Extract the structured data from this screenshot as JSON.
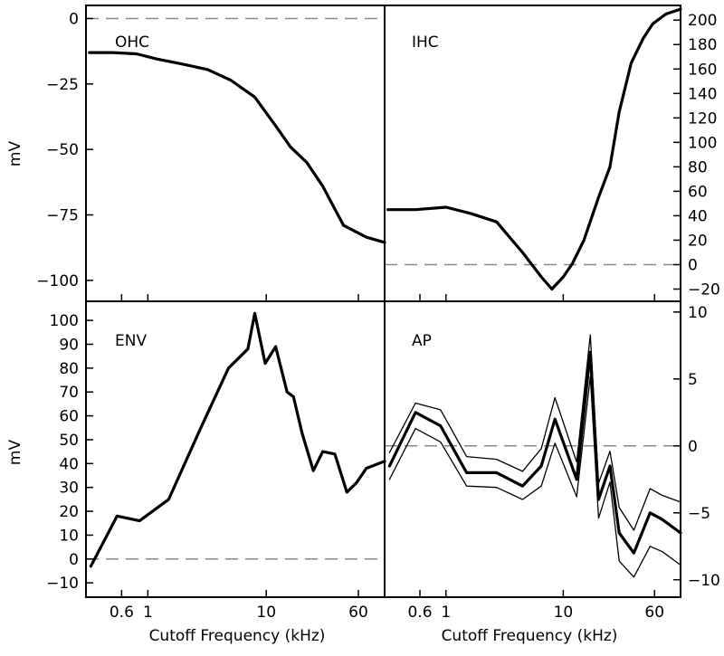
{
  "figure": {
    "x_axis_title": "Cutoff Frequency (kHz)",
    "y_axis_title": "mV",
    "x_ticks": [
      0.6,
      1,
      10,
      60
    ],
    "x_tick_labels": [
      "0.6",
      "1",
      "10",
      "60"
    ],
    "xlim": [
      0.3,
      100
    ],
    "x_scale": "log",
    "line_color": "#000000",
    "zero_line_color": "#888888"
  },
  "chart_data": [
    {
      "type": "line",
      "panel": "top-left",
      "label": "OHC",
      "x_scale": "log",
      "xlim": [
        0.3,
        100
      ],
      "ylim": [
        -108,
        5
      ],
      "y_axis_side": "left",
      "yticks": [
        0,
        -25,
        -50,
        -75,
        -100
      ],
      "ytick_labels": [
        "0",
        "−25",
        "−50",
        "−75",
        "−100"
      ],
      "zero_line": true,
      "series": [
        {
          "style": "thick",
          "x": [
            0.32,
            0.5,
            0.8,
            1.2,
            2,
            3.2,
            5,
            8,
            12,
            16,
            22,
            30,
            45,
            70,
            100
          ],
          "values": [
            -13,
            -13,
            -13.5,
            -15.5,
            -17.5,
            -19.5,
            -23.5,
            -30,
            -41,
            -49,
            -55,
            -64,
            -79,
            -83.5,
            -85.5
          ]
        }
      ]
    },
    {
      "type": "line",
      "panel": "top-right",
      "label": "IHC",
      "x_scale": "log",
      "xlim": [
        0.3,
        100
      ],
      "ylim": [
        -30,
        212
      ],
      "y_axis_side": "right",
      "yticks": [
        200,
        180,
        160,
        140,
        120,
        100,
        80,
        60,
        40,
        20,
        0,
        -20
      ],
      "ytick_labels": [
        "200",
        "180",
        "160",
        "140",
        "120",
        "100",
        "80",
        "60",
        "40",
        "20",
        "0",
        "−20"
      ],
      "zero_line": true,
      "series": [
        {
          "style": "thick",
          "x": [
            0.32,
            0.55,
            1,
            1.6,
            2.7,
            4.5,
            6.5,
            8,
            10,
            12,
            15,
            20,
            25,
            30,
            38,
            48,
            58,
            75,
            100
          ],
          "values": [
            45,
            45,
            47,
            42,
            35,
            10,
            -10,
            -20,
            -10,
            1,
            20,
            55,
            80,
            125,
            165,
            185,
            197,
            205,
            209
          ]
        }
      ]
    },
    {
      "type": "line",
      "panel": "bottom-left",
      "label": "ENV",
      "x_scale": "log",
      "xlim": [
        0.3,
        100
      ],
      "ylim": [
        -16,
        108
      ],
      "y_axis_side": "left",
      "yticks": [
        100,
        90,
        80,
        70,
        60,
        50,
        40,
        30,
        20,
        10,
        0,
        -10
      ],
      "ytick_labels": [
        "100",
        "90",
        "80",
        "70",
        "60",
        "50",
        "40",
        "30",
        "20",
        "10",
        "0",
        "−10"
      ],
      "zero_line": true,
      "series": [
        {
          "style": "thick",
          "x": [
            0.33,
            0.55,
            0.85,
            1.5,
            2.8,
            4.8,
            7,
            8,
            9.8,
            12,
            15,
            17,
            20,
            25,
            30,
            38,
            48,
            58,
            70,
            100
          ],
          "values": [
            -3,
            18,
            16,
            25,
            55,
            80,
            88,
            103,
            82,
            89,
            70,
            68,
            53,
            37,
            45,
            44,
            28,
            32,
            38,
            41
          ]
        }
      ]
    },
    {
      "type": "line",
      "panel": "bottom-right",
      "label": "AP",
      "x_scale": "log",
      "xlim": [
        0.3,
        100
      ],
      "ylim": [
        -11.3,
        10.8
      ],
      "y_axis_side": "right",
      "yticks": [
        10,
        5,
        0,
        -5,
        -10
      ],
      "ytick_labels": [
        "10",
        "5",
        "0",
        "−5",
        "−10"
      ],
      "zero_line": true,
      "series": [
        {
          "style": "thick",
          "x": [
            0.33,
            0.55,
            0.9,
            1.5,
            2.7,
            4.5,
            6.5,
            8.5,
            13,
            17,
            20,
            25,
            30,
            40,
            55,
            70,
            100
          ],
          "values": [
            -1.5,
            2.5,
            1.5,
            -2.0,
            -2.0,
            -3.0,
            -1.5,
            2.0,
            -2.5,
            7.0,
            -4.0,
            -1.5,
            -6.5,
            -8.0,
            -5.0,
            -5.5,
            -6.5
          ]
        },
        {
          "style": "thin",
          "x": [
            0.33,
            0.55,
            0.9,
            1.5,
            2.7,
            4.5,
            6.5,
            8.5,
            13,
            17,
            20,
            25,
            30,
            40,
            55,
            70,
            100
          ],
          "values": [
            -0.5,
            3.2,
            2.7,
            -0.8,
            -1.0,
            -1.9,
            -0.2,
            3.6,
            -1.2,
            8.3,
            -2.8,
            -0.4,
            -4.6,
            -6.3,
            -3.2,
            -3.7,
            -4.2
          ]
        },
        {
          "style": "thin",
          "x": [
            0.33,
            0.55,
            0.9,
            1.5,
            2.7,
            4.5,
            6.5,
            8.5,
            13,
            17,
            20,
            25,
            30,
            40,
            55,
            70,
            100
          ],
          "values": [
            -2.5,
            1.3,
            0.3,
            -3.0,
            -3.1,
            -4.0,
            -3.0,
            0.2,
            -3.8,
            5.2,
            -5.4,
            -2.7,
            -8.6,
            -9.8,
            -7.5,
            -7.9,
            -8.9
          ]
        }
      ]
    }
  ]
}
